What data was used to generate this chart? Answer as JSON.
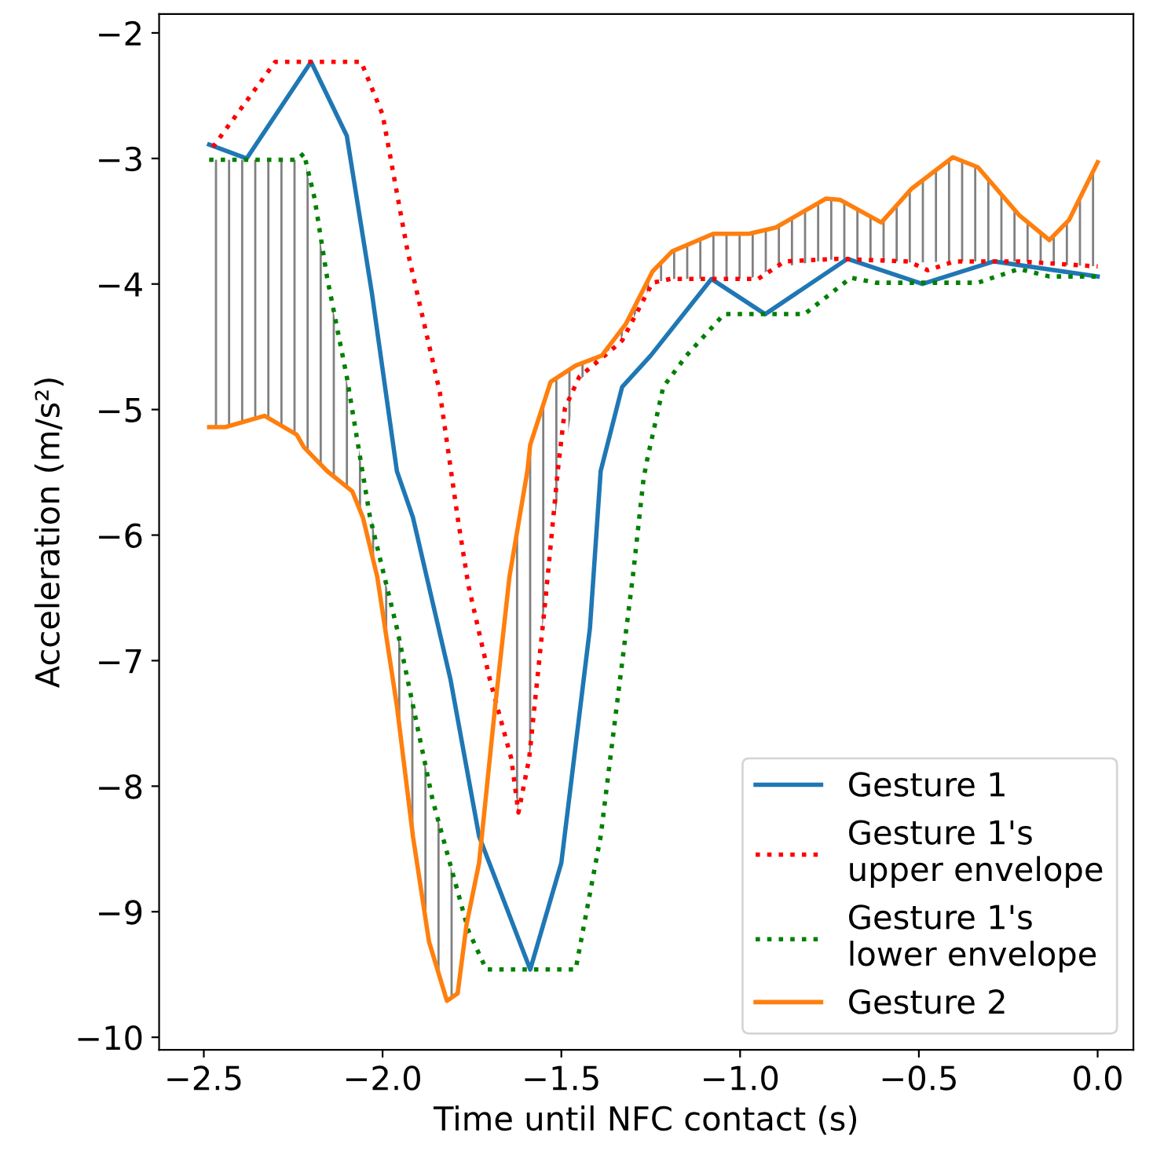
{
  "chart_data": {
    "type": "line",
    "xlabel": "Time until NFC contact (s)",
    "ylabel": "Acceleration (m/s²)",
    "xlim": [
      -2.625,
      0.1
    ],
    "ylim": [
      -10.1,
      -1.85
    ],
    "xticks": [
      {
        "value": -2.5,
        "label": "−2.5"
      },
      {
        "value": -2.0,
        "label": "−2.0"
      },
      {
        "value": -1.5,
        "label": "−1.5"
      },
      {
        "value": -1.0,
        "label": "−1.0"
      },
      {
        "value": -0.5,
        "label": "−0.5"
      },
      {
        "value": 0.0,
        "label": "0.0"
      }
    ],
    "yticks": [
      {
        "value": -10,
        "label": "−10"
      },
      {
        "value": -9,
        "label": "−9"
      },
      {
        "value": -8,
        "label": "−8"
      },
      {
        "value": -7,
        "label": "−7"
      },
      {
        "value": -6,
        "label": "−6"
      },
      {
        "value": -5,
        "label": "−5"
      },
      {
        "value": -4,
        "label": "−4"
      },
      {
        "value": -3,
        "label": "−3"
      },
      {
        "value": -2,
        "label": "−2"
      }
    ],
    "grid": false,
    "legend": "bottom right",
    "marker": "none",
    "series": [
      {
        "name": "Gesture 1",
        "color": "#1f77b4",
        "line_style": "solid",
        "x": [
          -2.485,
          -2.38,
          -2.2,
          -2.1,
          -2.03,
          -1.96,
          -1.915,
          -1.81,
          -1.73,
          -1.587,
          -1.5,
          -1.42,
          -1.39,
          -1.33,
          -1.25,
          -1.08,
          -0.93,
          -0.7,
          -0.49,
          -0.29,
          0.0
        ],
        "values": [
          -2.89,
          -3.0,
          -2.23,
          -2.82,
          -4.07,
          -5.49,
          -5.86,
          -7.15,
          -8.4,
          -9.46,
          -8.61,
          -6.74,
          -5.49,
          -4.82,
          -4.57,
          -3.96,
          -4.24,
          -3.8,
          -4.0,
          -3.82,
          -3.94
        ]
      },
      {
        "name": "Gesture 1's\nupper envelope",
        "color": "#ff0000",
        "line_style": "dotted",
        "x": [
          -2.475,
          -2.3,
          -2.06,
          -2.0,
          -1.93,
          -1.84,
          -1.79,
          -1.76,
          -1.7,
          -1.64,
          -1.62,
          -1.59,
          -1.545,
          -1.51,
          -1.49,
          -1.45,
          -1.345,
          -1.33,
          -1.245,
          -1.195,
          -0.95,
          -0.875,
          -0.73,
          -0.53,
          -0.475,
          -0.4,
          -0.22,
          0.0
        ],
        "values": [
          -2.91,
          -2.23,
          -2.23,
          -2.65,
          -3.74,
          -4.86,
          -5.86,
          -6.4,
          -7.15,
          -7.78,
          -8.21,
          -7.78,
          -6.53,
          -5.49,
          -4.99,
          -4.74,
          -4.49,
          -4.45,
          -3.99,
          -3.96,
          -3.96,
          -3.82,
          -3.8,
          -3.82,
          -3.89,
          -3.82,
          -3.82,
          -3.86
        ]
      },
      {
        "name": "Gesture 1's\nlower envelope",
        "color": "#008000",
        "line_style": "dotted",
        "x": [
          -2.485,
          -2.24,
          -2.22,
          -2.19,
          -2.155,
          -2.1,
          -2.035,
          -1.96,
          -1.86,
          -1.76,
          -1.71,
          -1.46,
          -1.39,
          -1.345,
          -1.3,
          -1.27,
          -1.26,
          -1.215,
          -1.15,
          -1.045,
          -0.82,
          -0.69,
          -0.62,
          -0.335,
          -0.22,
          -0.135,
          0.0
        ],
        "values": [
          -3.01,
          -3.01,
          -2.96,
          -3.32,
          -3.95,
          -4.74,
          -5.86,
          -6.74,
          -8.11,
          -9.15,
          -9.46,
          -9.46,
          -8.4,
          -7.36,
          -6.33,
          -5.55,
          -5.4,
          -4.82,
          -4.57,
          -4.24,
          -4.24,
          -3.95,
          -3.99,
          -3.99,
          -3.88,
          -3.94,
          -3.94
        ]
      },
      {
        "name": "Gesture 2",
        "color": "#ff7f0e",
        "line_style": "solid",
        "x": [
          -2.485,
          -2.44,
          -2.33,
          -2.24,
          -2.22,
          -2.155,
          -2.085,
          -2.055,
          -2.015,
          -1.96,
          -1.915,
          -1.87,
          -1.82,
          -1.79,
          -1.765,
          -1.73,
          -1.685,
          -1.645,
          -1.62,
          -1.595,
          -1.587,
          -1.53,
          -1.46,
          -1.387,
          -1.32,
          -1.245,
          -1.19,
          -1.075,
          -0.975,
          -0.9,
          -0.76,
          -0.72,
          -0.605,
          -0.52,
          -0.405,
          -0.335,
          -0.22,
          -0.135,
          -0.08,
          0.0
        ],
        "values": [
          -5.14,
          -5.14,
          -5.05,
          -5.2,
          -5.3,
          -5.49,
          -5.65,
          -5.86,
          -6.33,
          -7.36,
          -8.4,
          -9.24,
          -9.71,
          -9.65,
          -9.1,
          -8.61,
          -7.36,
          -6.33,
          -5.91,
          -5.49,
          -5.28,
          -4.78,
          -4.65,
          -4.57,
          -4.32,
          -3.9,
          -3.74,
          -3.6,
          -3.6,
          -3.55,
          -3.32,
          -3.33,
          -3.51,
          -3.24,
          -2.99,
          -3.07,
          -3.45,
          -3.65,
          -3.49,
          -3.03
        ],
        "lower": [
          -5.14,
          -5.14,
          -5.05,
          -5.2,
          -5.3,
          -5.49,
          -5.65,
          -5.86,
          -6.33,
          -7.36,
          -8.4,
          -9.24,
          -9.71,
          -9.65,
          null,
          null,
          null,
          -7.73,
          -8.21,
          -7.85,
          -7.74,
          -6.08,
          -4.8,
          -4.59,
          -4.39,
          -3.99,
          -3.96,
          -3.96,
          -3.96,
          -3.87,
          -3.81,
          -3.8,
          -3.81,
          -3.83,
          -3.82,
          -3.82,
          -3.82,
          -3.84,
          -3.85,
          -3.86
        ],
        "upper": [
          -3.01,
          -3.01,
          -3.01,
          -3.01,
          -2.96,
          -3.95,
          -5.0,
          -5.5,
          -6.1,
          -6.74,
          -7.36,
          -7.97,
          -8.53,
          -8.84,
          null,
          null,
          null,
          -6.33,
          -5.91,
          -5.49,
          -5.28,
          -4.78,
          -4.65,
          -4.57,
          -4.32,
          -3.9,
          -3.74,
          -3.6,
          -3.6,
          -3.55,
          -3.32,
          -3.33,
          -3.51,
          -3.24,
          -2.99,
          -3.07,
          -3.45,
          -3.65,
          -3.49,
          -3.03
        ]
      }
    ]
  }
}
